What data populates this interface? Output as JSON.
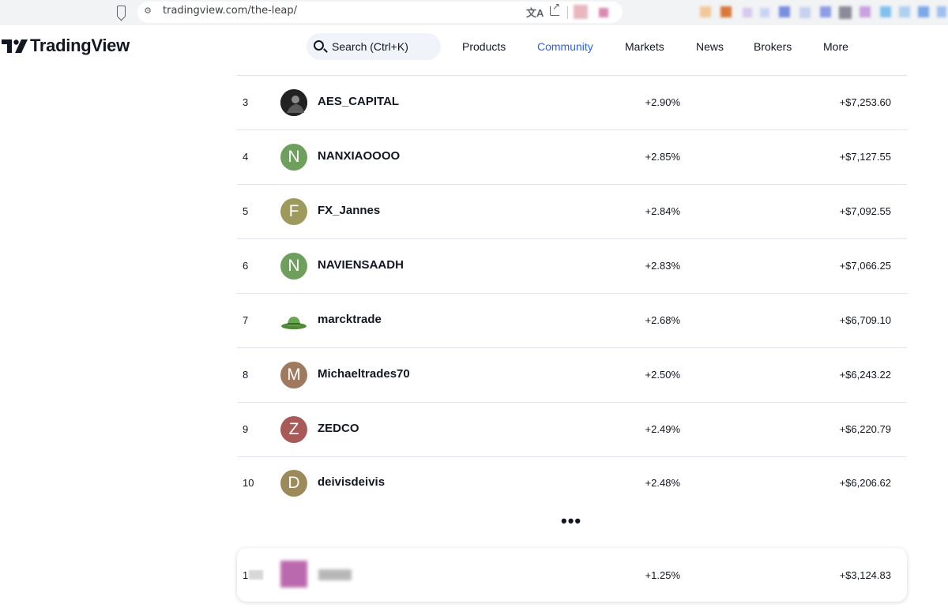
{
  "browser": {
    "url": "tradingview.com/the-leap/",
    "translate_icon": "文A"
  },
  "header": {
    "logo": "TradingView",
    "search_placeholder": "Search (Ctrl+K)",
    "nav": [
      {
        "label": "Products"
      },
      {
        "label": "Community",
        "active": true
      },
      {
        "label": "Markets"
      },
      {
        "label": "News"
      },
      {
        "label": "Brokers"
      },
      {
        "label": "More"
      }
    ]
  },
  "leaderboard": {
    "rows": [
      {
        "rank": "3",
        "name": "AES_CAPITAL",
        "percent": "+2.90%",
        "amount": "+$7,253.60",
        "avatar_type": "photo",
        "avatar_letter": "",
        "avatar_color": "#2a2a2a"
      },
      {
        "rank": "4",
        "name": "NANXIAOOOO",
        "percent": "+2.85%",
        "amount": "+$7,127.55",
        "avatar_type": "letter",
        "avatar_letter": "N",
        "avatar_color": "#6f9f5c"
      },
      {
        "rank": "5",
        "name": "FX_Jannes",
        "percent": "+2.84%",
        "amount": "+$7,092.55",
        "avatar_type": "letter",
        "avatar_letter": "F",
        "avatar_color": "#9e9a5e"
      },
      {
        "rank": "6",
        "name": "NAVIENSAADH",
        "percent": "+2.83%",
        "amount": "+$7,066.25",
        "avatar_type": "letter",
        "avatar_letter": "N",
        "avatar_color": "#6f9f5c"
      },
      {
        "rank": "7",
        "name": "marcktrade",
        "percent": "+2.68%",
        "amount": "+$6,709.10",
        "avatar_type": "hat",
        "avatar_letter": "",
        "avatar_color": "#6aa84f"
      },
      {
        "rank": "8",
        "name": "Michaeltrades70",
        "percent": "+2.50%",
        "amount": "+$6,243.22",
        "avatar_type": "letter",
        "avatar_letter": "M",
        "avatar_color": "#a07a5e"
      },
      {
        "rank": "9",
        "name": "ZEDCO",
        "percent": "+2.49%",
        "amount": "+$6,220.79",
        "avatar_type": "letter",
        "avatar_letter": "Z",
        "avatar_color": "#a85a58"
      },
      {
        "rank": "10",
        "name": "deivisdeivis",
        "percent": "+2.48%",
        "amount": "+$6,206.62",
        "avatar_type": "letter",
        "avatar_letter": "D",
        "avatar_color": "#9c8a5a"
      }
    ],
    "ellipsis": "•••",
    "self": {
      "rank": "1",
      "percent": "+1.25%",
      "amount": "+$3,124.83"
    }
  },
  "colors": {
    "accent": "#2962ff",
    "text": "#131722",
    "divider": "#e0e3eb"
  }
}
